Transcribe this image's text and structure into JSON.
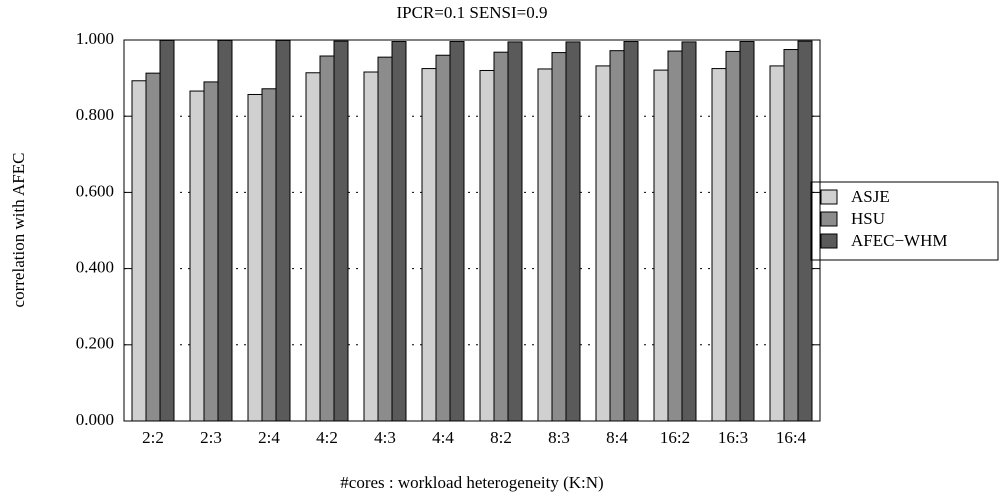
{
  "chart_data": {
    "type": "bar",
    "title": "IPCR=0.1 SENSI=0.9",
    "x_label": "#cores : workload heterogeneity (K:N)",
    "y_label": "correlation with AFEC",
    "categories": [
      "2:2",
      "2:3",
      "2:4",
      "4:2",
      "4:3",
      "4:4",
      "8:2",
      "8:3",
      "8:4",
      "16:2",
      "16:3",
      "16:4"
    ],
    "series": [
      {
        "name": "ASJE",
        "color": "#d0d0d0",
        "values": [
          0.893,
          0.866,
          0.857,
          0.914,
          0.916,
          0.925,
          0.92,
          0.924,
          0.932,
          0.921,
          0.925,
          0.932
        ]
      },
      {
        "name": "HSU",
        "color": "#8c8c8c",
        "values": [
          0.913,
          0.89,
          0.872,
          0.958,
          0.955,
          0.96,
          0.968,
          0.967,
          0.972,
          0.971,
          0.97,
          0.975
        ]
      },
      {
        "name": "AFEC−WHM",
        "color": "#5a5a5a",
        "values": [
          0.999,
          0.999,
          0.999,
          0.997,
          0.996,
          0.996,
          0.995,
          0.995,
          0.996,
          0.995,
          0.996,
          0.997
        ]
      }
    ],
    "ylim": [
      0,
      1
    ],
    "yticks": [
      {
        "value": 0,
        "label": "0.000"
      },
      {
        "value": 0.2,
        "label": "0.200"
      },
      {
        "value": 0.4,
        "label": "0.400"
      },
      {
        "value": 0.6,
        "label": "0.600"
      },
      {
        "value": 0.8,
        "label": "0.800"
      },
      {
        "value": 1,
        "label": "1.000"
      }
    ],
    "grid": true,
    "legend_position": "right"
  }
}
